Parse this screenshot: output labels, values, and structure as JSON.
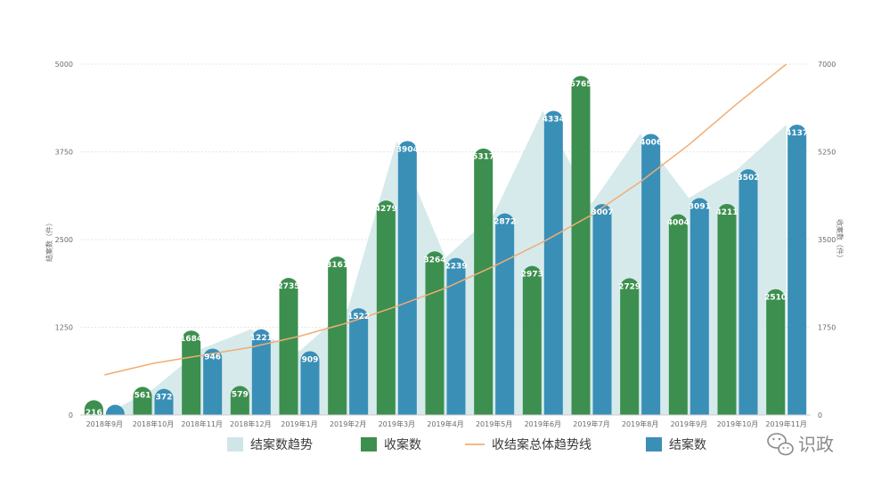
{
  "chart_data": {
    "type": "bar",
    "categories": [
      "2018年9月",
      "2018年10月",
      "2018年11月",
      "2018年12月",
      "2019年1月",
      "2019年2月",
      "2019年3月",
      "2019年4月",
      "2019年5月",
      "2019年6月",
      "2019年7月",
      "2019年8月",
      "2019年9月",
      "2019年10月",
      "2019年11月"
    ],
    "series": [
      {
        "name": "收案数",
        "axis": "right",
        "color": "#3d8f4f",
        "values": [
          216,
          561,
          1684,
          579,
          2735,
          3161,
          4279,
          3264,
          5317,
          2973,
          6765,
          2729,
          4004,
          4211,
          2510
        ],
        "labels": [
          "216",
          "561",
          "1684",
          "579",
          "2735",
          "3161",
          "4279",
          "3264",
          "5317",
          "2973",
          "6765",
          "2729",
          "4004",
          "4211",
          "2510"
        ]
      },
      {
        "name": "结案数",
        "axis": "left",
        "color": "#3a8fb7",
        "values": [
          25,
          372,
          946,
          1221,
          909,
          1522,
          3904,
          2239,
          2872,
          4334,
          3007,
          4006,
          3091,
          3502,
          4137
        ],
        "labels": [
          "",
          "372",
          "946",
          "1221",
          "909",
          "1522",
          "3904",
          "2239",
          "2872",
          "4334",
          "3007",
          "4006",
          "3091",
          "3502",
          "4137"
        ]
      }
    ],
    "area_series": {
      "name": "结案数趋势",
      "axis": "left",
      "color": "#cfe6e8",
      "values": [
        0,
        372,
        946,
        1221,
        909,
        1522,
        3904,
        2239,
        2872,
        4334,
        3007,
        4006,
        3091,
        3502,
        4137
      ]
    },
    "trend_line": {
      "name": "收结案总体趋势线",
      "axis": "right",
      "color": "#f0ad74",
      "values": [
        800,
        1030,
        1190,
        1350,
        1570,
        1840,
        2170,
        2530,
        2970,
        3450,
        3990,
        4650,
        5390,
        6220,
        7000
      ]
    },
    "y_left": {
      "label": "结案数（件）",
      "ticks": [
        "0",
        "1250",
        "2500",
        "3750",
        "5000"
      ],
      "ylim": [
        0,
        5000
      ]
    },
    "y_right": {
      "label": "收案数（件）",
      "ticks": [
        "0",
        "1750",
        "3500",
        "5250",
        "7000"
      ],
      "ylim": [
        0,
        7000
      ]
    },
    "legend": {
      "position": "bottom"
    },
    "grid": true
  },
  "legend_items": [
    {
      "label": "结案数趋势",
      "kind": "area",
      "color": "#cfe6e8"
    },
    {
      "label": "收案数",
      "kind": "bar",
      "color": "#3d8f4f"
    },
    {
      "label": "收结案总体趋势线",
      "kind": "line",
      "color": "#f0ad74"
    },
    {
      "label": "结案数",
      "kind": "bar",
      "color": "#3a8fb7"
    }
  ],
  "watermark": {
    "text": "识政",
    "icon": "wechat-icon"
  }
}
